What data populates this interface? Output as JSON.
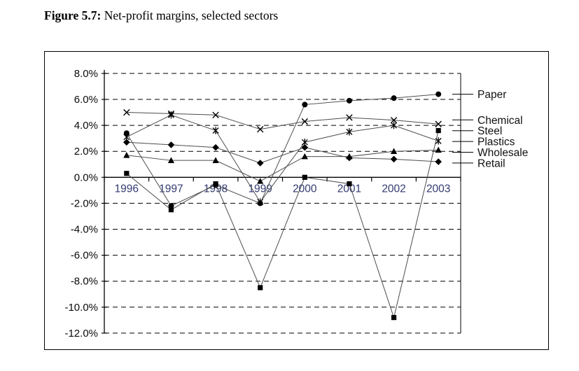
{
  "figure": {
    "label": "Figure 5.7:",
    "title": " Net-profit margins, selected sectors"
  },
  "chart_data": {
    "type": "line",
    "title": "Net-profit margins, selected sectors",
    "xlabel": "",
    "ylabel": "",
    "categories": [
      "1996",
      "1997",
      "1998",
      "1999",
      "2000",
      "2001",
      "2002",
      "2003"
    ],
    "series": [
      {
        "name": "Paper",
        "marker": "circle",
        "values": [
          3.4,
          -2.2,
          -0.6,
          -2.0,
          5.6,
          5.9,
          6.1,
          6.4
        ]
      },
      {
        "name": "Chemical",
        "marker": "x",
        "values": [
          5.0,
          4.9,
          4.8,
          3.7,
          4.3,
          4.6,
          4.4,
          4.1
        ]
      },
      {
        "name": "Steel",
        "marker": "square",
        "values": [
          0.3,
          -2.5,
          -0.5,
          -8.5,
          0.0,
          -0.5,
          -10.8,
          3.6
        ]
      },
      {
        "name": "Plastics",
        "marker": "star",
        "values": [
          3.1,
          4.8,
          3.6,
          -1.9,
          2.7,
          3.5,
          4.0,
          2.8
        ]
      },
      {
        "name": "Wholesale",
        "marker": "triangle",
        "values": [
          1.7,
          1.3,
          1.3,
          -0.3,
          1.6,
          1.6,
          2.0,
          2.1
        ]
      },
      {
        "name": "Retail",
        "marker": "diamond",
        "values": [
          2.7,
          2.5,
          2.3,
          1.1,
          2.3,
          1.5,
          1.4,
          1.2
        ]
      }
    ],
    "ylim": [
      -12,
      8
    ],
    "ytick_step": 2,
    "ytick_labels": [
      "8.0%",
      "6.0%",
      "4.0%",
      "2.0%",
      "0.0%",
      "-2.0%",
      "-4.0%",
      "-6.0%",
      "-8.0%",
      "-10.0%",
      "-12.0%"
    ],
    "grid": "horizontal dashed",
    "legend_position": "right, pointer lines aligned to 2003 endpoints",
    "legend_order": [
      "Paper",
      "Chemical",
      "Steel",
      "Plastics",
      "Wholesale",
      "Retail"
    ],
    "colors": {
      "series_line": "#4d4d4d",
      "marker": "#000000",
      "grid": "#000000",
      "axis": "#000000",
      "year_label": "#333a70",
      "value_label": "#0a0a0a",
      "legend_label": "#111111"
    }
  }
}
